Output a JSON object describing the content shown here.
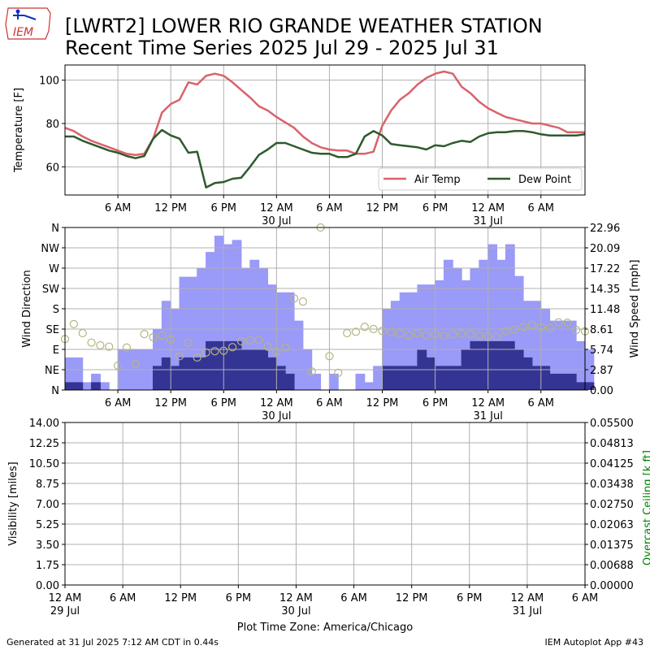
{
  "header": {
    "logo_text": "IEM",
    "title_line1": "[LWRT2] LOWER RIO GRANDE WEATHER STATION",
    "title_line2": "Recent Time Series 2025 Jul 29 - 2025 Jul 31"
  },
  "footer": {
    "generated": "Generated at 31 Jul 2025 7:12 AM CDT in 0.44s",
    "app": "IEM Autoplot App #43",
    "timezone_label": "Plot Time Zone: America/Chicago"
  },
  "colors": {
    "air_temp": "#d9636b",
    "dew_point": "#2e5a2e",
    "gust_bar": "#9a9af8",
    "speed_bar": "#343494",
    "direction_marker": "#b5b582",
    "ceiling_axis": "#008000"
  },
  "chart_data": [
    {
      "type": "line",
      "panel": "temperature",
      "ylabel": "Temperature [F]",
      "ylim": [
        47,
        107
      ],
      "yticks": [
        60,
        80,
        100
      ],
      "xlim_hours": [
        0,
        59
      ],
      "x_tick_labels": [
        "6 AM",
        "12 PM",
        "6 PM",
        "12 AM",
        "6 AM",
        "12 PM",
        "6 PM",
        "12 AM",
        "6 AM"
      ],
      "x_date_labels": [
        "30 Jul",
        "31 Jul"
      ],
      "grid": true,
      "legend": "lower-right",
      "series": [
        {
          "name": "Air Temp",
          "values": [
            [
              0,
              78
            ],
            [
              1,
              76.5
            ],
            [
              2,
              74
            ],
            [
              3,
              72
            ],
            [
              4,
              70.5
            ],
            [
              5,
              69
            ],
            [
              6,
              67.5
            ],
            [
              7,
              66
            ],
            [
              8,
              65.5
            ],
            [
              9,
              66
            ],
            [
              10,
              73
            ],
            [
              11,
              85
            ],
            [
              12,
              89
            ],
            [
              13,
              91
            ],
            [
              14,
              99
            ],
            [
              15,
              98
            ],
            [
              16,
              102
            ],
            [
              17,
              103
            ],
            [
              18,
              102
            ],
            [
              19,
              99
            ],
            [
              20,
              95.5
            ],
            [
              21,
              92
            ],
            [
              22,
              88
            ],
            [
              23,
              86
            ],
            [
              24,
              83
            ],
            [
              25,
              80.5
            ],
            [
              26,
              78
            ],
            [
              27,
              74
            ],
            [
              28,
              71
            ],
            [
              29,
              69
            ],
            [
              30,
              68
            ],
            [
              31,
              67.5
            ],
            [
              32,
              67.5
            ],
            [
              33,
              66
            ],
            [
              34,
              66
            ],
            [
              35,
              67
            ],
            [
              36,
              79
            ],
            [
              37,
              86
            ],
            [
              38,
              91
            ],
            [
              39,
              94
            ],
            [
              40,
              98
            ],
            [
              41,
              101
            ],
            [
              42,
              103
            ],
            [
              43,
              104
            ],
            [
              44,
              103
            ],
            [
              45,
              97
            ],
            [
              46,
              94
            ],
            [
              47,
              90
            ],
            [
              48,
              87
            ],
            [
              49,
              85
            ],
            [
              50,
              83
            ],
            [
              51,
              82
            ],
            [
              52,
              81
            ],
            [
              53,
              80
            ],
            [
              54,
              80
            ],
            [
              55,
              79
            ],
            [
              56,
              78
            ],
            [
              57,
              76
            ],
            [
              58,
              76
            ],
            [
              59,
              76
            ]
          ]
        },
        {
          "name": "Dew Point",
          "values": [
            [
              0,
              74
            ],
            [
              1,
              74
            ],
            [
              2,
              72
            ],
            [
              3,
              70.5
            ],
            [
              4,
              69
            ],
            [
              5,
              67.5
            ],
            [
              6,
              66.5
            ],
            [
              7,
              65
            ],
            [
              8,
              64
            ],
            [
              9,
              65
            ],
            [
              10,
              73
            ],
            [
              11,
              77
            ],
            [
              12,
              74.5
            ],
            [
              13,
              73
            ],
            [
              14,
              66.5
            ],
            [
              15,
              67
            ],
            [
              16,
              50.5
            ],
            [
              17,
              52.5
            ],
            [
              18,
              53
            ],
            [
              19,
              54.5
            ],
            [
              20,
              55
            ],
            [
              21,
              60
            ],
            [
              22,
              65.5
            ],
            [
              23,
              68
            ],
            [
              24,
              71
            ],
            [
              25,
              71
            ],
            [
              26,
              69.5
            ],
            [
              27,
              68
            ],
            [
              28,
              66.5
            ],
            [
              29,
              66
            ],
            [
              30,
              66
            ],
            [
              31,
              64.5
            ],
            [
              32,
              64.5
            ],
            [
              33,
              66
            ],
            [
              34,
              74
            ],
            [
              35,
              76.5
            ],
            [
              36,
              74.5
            ],
            [
              37,
              70.5
            ],
            [
              38,
              70
            ],
            [
              39,
              69.5
            ],
            [
              40,
              69
            ],
            [
              41,
              68
            ],
            [
              42,
              70
            ],
            [
              43,
              69.5
            ],
            [
              44,
              71
            ],
            [
              45,
              72
            ],
            [
              46,
              71.5
            ],
            [
              47,
              74
            ],
            [
              48,
              75.5
            ],
            [
              49,
              76
            ],
            [
              50,
              76
            ],
            [
              51,
              76.5
            ],
            [
              52,
              76.5
            ],
            [
              53,
              76
            ],
            [
              54,
              75
            ],
            [
              55,
              74.5
            ],
            [
              56,
              74.5
            ],
            [
              57,
              74.5
            ],
            [
              58,
              74.5
            ],
            [
              59,
              75
            ]
          ]
        }
      ]
    },
    {
      "type": "bar",
      "panel": "wind",
      "ylabel_left": "Wind Direction",
      "ylabel_right": "Wind Speed [mph]",
      "direction_ticks": [
        "N",
        "NE",
        "E",
        "SE",
        "S",
        "SW",
        "W",
        "NW",
        "N"
      ],
      "speed_ticks": [
        "0.00",
        "2.87",
        "5.74",
        "8.61",
        "11.48",
        "14.35",
        "17.22",
        "20.09",
        "22.96"
      ],
      "ylim_speed": [
        0,
        22.96
      ],
      "ylim_direction": [
        0,
        360
      ],
      "xlim_hours": [
        0,
        59
      ],
      "x_tick_labels": [
        "6 AM",
        "12 PM",
        "6 PM",
        "12 AM",
        "6 AM",
        "12 PM",
        "6 PM",
        "12 AM",
        "6 AM"
      ],
      "x_date_labels": [
        "30 Jul",
        "31 Jul"
      ],
      "grid": true,
      "series": [
        {
          "name": "gust",
          "values": [
            4.6,
            4.6,
            1.1,
            2.3,
            1.1,
            0,
            5.7,
            5.7,
            5.7,
            5.7,
            8.6,
            12.6,
            11.5,
            16.0,
            16.0,
            17.2,
            19.5,
            21.8,
            20.6,
            21.2,
            17.2,
            18.4,
            17.2,
            14.9,
            13.8,
            13.8,
            9.8,
            5.7,
            2.3,
            0,
            2.3,
            0,
            0,
            2.3,
            1.1,
            3.4,
            11.5,
            12.6,
            13.8,
            13.8,
            14.9,
            14.9,
            15.5,
            18.4,
            17.2,
            15.5,
            17.2,
            18.4,
            20.6,
            18.4,
            20.6,
            16.1,
            12.6,
            12.6,
            11.5,
            9.8,
            9.8,
            9.8,
            6.9,
            5.7
          ]
        },
        {
          "name": "speed",
          "values": [
            1.1,
            1.1,
            0,
            1.1,
            0,
            0,
            0,
            0,
            0,
            0,
            3.4,
            4.6,
            3.4,
            4.6,
            4.6,
            4.6,
            6.9,
            6.9,
            6.9,
            6.9,
            5.7,
            5.7,
            5.7,
            4.6,
            3.4,
            2.3,
            0,
            0,
            0,
            0,
            0,
            0,
            0,
            0,
            0,
            0,
            3.4,
            3.4,
            3.4,
            3.4,
            5.7,
            4.6,
            3.4,
            3.4,
            3.4,
            5.7,
            6.9,
            6.9,
            6.9,
            6.9,
            6.9,
            5.7,
            4.6,
            3.4,
            3.4,
            2.3,
            2.3,
            2.3,
            1.1,
            1.1
          ]
        },
        {
          "name": "direction",
          "values": [
            [
              0,
              113
            ],
            [
              1,
              146
            ],
            [
              2,
              126
            ],
            [
              3,
              105
            ],
            [
              4,
              99
            ],
            [
              5,
              96
            ],
            [
              6,
              54
            ],
            [
              7,
              94
            ],
            [
              8,
              58
            ],
            [
              9,
              124
            ],
            [
              10,
              117
            ],
            [
              11,
              121
            ],
            [
              12,
              112
            ],
            [
              13,
              75
            ],
            [
              14,
              105
            ],
            [
              15,
              72
            ],
            [
              16,
              83
            ],
            [
              17,
              86
            ],
            [
              18,
              87
            ],
            [
              19,
              95
            ],
            [
              20,
              108
            ],
            [
              21,
              110
            ],
            [
              22,
              111
            ],
            [
              23,
              96
            ],
            [
              24,
              85
            ],
            [
              25,
              94
            ],
            [
              26,
              203
            ],
            [
              27,
              196
            ],
            [
              28,
              41
            ],
            [
              29,
              360
            ],
            [
              30,
              75
            ],
            [
              31,
              38
            ],
            [
              32,
              126
            ],
            [
              33,
              129
            ],
            [
              34,
              140
            ],
            [
              35,
              135
            ],
            [
              36,
              131
            ],
            [
              37,
              128
            ],
            [
              38,
              125
            ],
            [
              39,
              121
            ],
            [
              40,
              126
            ],
            [
              41,
              121
            ],
            [
              42,
              123
            ],
            [
              43,
              120
            ],
            [
              44,
              123
            ],
            [
              45,
              125
            ],
            [
              46,
              124
            ],
            [
              47,
              121
            ],
            [
              48,
              119
            ],
            [
              49,
              118
            ],
            [
              50,
              130
            ],
            [
              51,
              134
            ],
            [
              52,
              140
            ],
            [
              53,
              144
            ],
            [
              54,
              139
            ],
            [
              55,
              137
            ],
            [
              56,
              150
            ],
            [
              57,
              149
            ],
            [
              58,
              133
            ],
            [
              59,
              130
            ]
          ]
        }
      ]
    },
    {
      "type": "line",
      "panel": "visibility",
      "ylabel_left": "Visibility [miles]",
      "ylabel_right": "Overcast Ceiling [k ft]",
      "left_ticks": [
        "0.00",
        "1.75",
        "3.50",
        "5.25",
        "7.00",
        "8.75",
        "10.50",
        "12.25",
        "14.00"
      ],
      "right_ticks": [
        "0.00000",
        "0.00688",
        "0.01375",
        "0.02063",
        "0.02750",
        "0.03438",
        "0.04125",
        "0.04813",
        "0.05500"
      ],
      "ylim_left": [
        0,
        14
      ],
      "ylim_right": [
        0,
        0.055
      ],
      "xlim_hours": [
        0,
        54
      ],
      "x_tick_labels": [
        "12 AM",
        "6 AM",
        "12 PM",
        "6 PM",
        "12 AM",
        "6 AM",
        "12 PM",
        "6 PM",
        "12 AM",
        "6 AM"
      ],
      "x_date_labels": [
        "29 Jul",
        "30 Jul",
        "31 Jul"
      ],
      "grid": true,
      "series": []
    }
  ]
}
